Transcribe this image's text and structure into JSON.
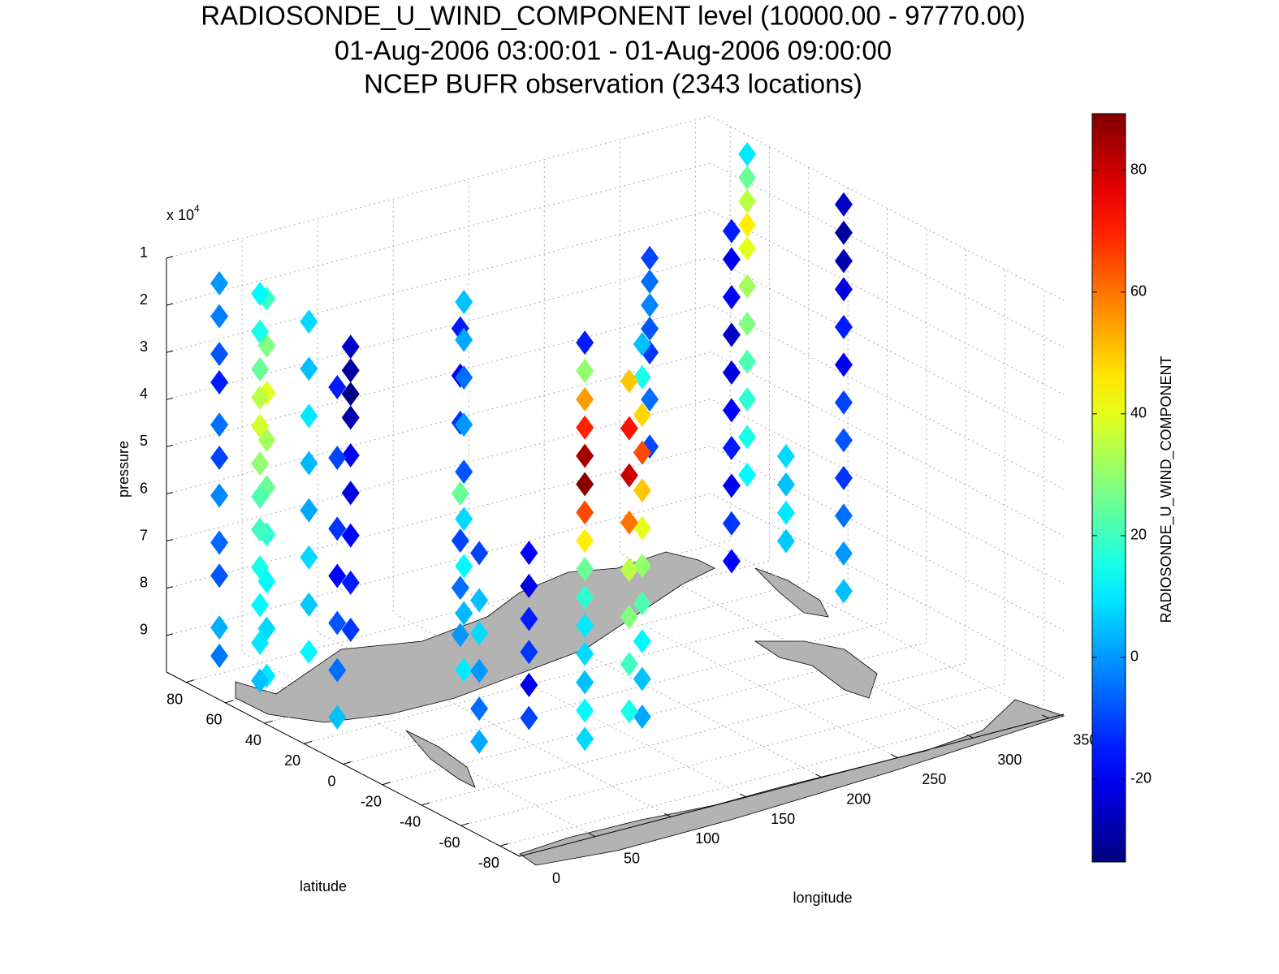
{
  "chart_data": {
    "type": "scatter3d",
    "title": [
      "RADIOSONDE_U_WIND_COMPONENT level (10000.00 - 97770.00)",
      "01-Aug-2006 03:00:01 - 01-Aug-2006 09:00:00",
      "NCEP BUFR observation (2343 locations)"
    ],
    "xlabel": "longitude",
    "ylabel": "latitude",
    "zlabel": "pressure",
    "z_multiplier": "x 10",
    "z_multiplier_exponent": "4",
    "xlim": [
      0,
      360
    ],
    "xticks": [
      0,
      50,
      100,
      150,
      200,
      250,
      300,
      350
    ],
    "ylim": [
      -90,
      90
    ],
    "yticks": [
      -80,
      -60,
      -40,
      -20,
      0,
      20,
      40,
      60,
      80
    ],
    "zlim": [
      10000,
      97770
    ],
    "zdir": "reverse",
    "zticks": [
      {
        "value": 10000,
        "label": "1"
      },
      {
        "value": 20000,
        "label": "2"
      },
      {
        "value": 30000,
        "label": "3"
      },
      {
        "value": 40000,
        "label": "4"
      },
      {
        "value": 50000,
        "label": "5"
      },
      {
        "value": 60000,
        "label": "6"
      },
      {
        "value": 70000,
        "label": "7"
      },
      {
        "value": 80000,
        "label": "8"
      },
      {
        "value": 90000,
        "label": "9"
      }
    ],
    "grid": true,
    "marker": "diamond",
    "colormap": "jet",
    "clim": [
      -33.6,
      89.3
    ],
    "colorbar_label": "RADIOSONDE_U_WIND_COMPONENT",
    "colorbar_ticks": [
      -20,
      0,
      20,
      40,
      60,
      80
    ],
    "stations": [
      {
        "longitude": 344,
        "latitude": 59,
        "pressure": [
          10000,
          15000,
          20000,
          25000,
          30000,
          38000,
          46000,
          54000,
          62000,
          70000,
          78000
        ],
        "values": [
          10,
          25,
          35,
          45,
          40,
          32,
          28,
          22,
          18,
          15,
          12
        ]
      },
      {
        "longitude": 345,
        "latitude": 40,
        "pressure": [
          70000,
          76000,
          82000,
          88000
        ],
        "values": [
          8,
          5,
          10,
          6
        ]
      },
      {
        "longitude": 273,
        "latitude": 54,
        "pressure": [
          25000,
          30000,
          35000,
          40000,
          45000,
          55000,
          65000
        ],
        "values": [
          -10,
          -5,
          -2,
          -8,
          -12,
          -5,
          -10
        ]
      },
      {
        "longitude": 352,
        "latitude": 16,
        "pressure": [
          12000,
          18000,
          24000,
          30000,
          38000,
          46000,
          54000,
          62000,
          70000,
          78000,
          86000,
          94000
        ],
        "values": [
          -25,
          -30,
          -28,
          -22,
          -15,
          -20,
          -10,
          -8,
          -12,
          -5,
          0,
          5
        ]
      },
      {
        "longitude": 296,
        "latitude": 30,
        "pressure": [
          16000,
          22000,
          30000,
          38000,
          46000,
          54000,
          62000,
          70000,
          78000,
          86000
        ],
        "values": [
          -15,
          -20,
          -18,
          -25,
          -22,
          -18,
          -15,
          -20,
          -12,
          -18
        ]
      },
      {
        "longitude": 22,
        "latitude": 80,
        "pressure": [
          15000,
          22000,
          30000,
          36000,
          45000,
          52000,
          60000,
          70000,
          77000,
          88000,
          94000
        ],
        "values": [
          0,
          -3,
          -8,
          -15,
          -5,
          -10,
          -2,
          -6,
          -8,
          3,
          -4
        ]
      },
      {
        "longitude": 30,
        "latitude": 62,
        "pressure": [
          15000,
          25000,
          35000,
          45000,
          55000,
          65000,
          75000,
          85000,
          95000
        ],
        "values": [
          20,
          28,
          40,
          32,
          25,
          18,
          12,
          8,
          10
        ]
      },
      {
        "longitude": 66,
        "latitude": 47,
        "pressure": [
          25000,
          30000,
          35000,
          40000,
          48000,
          56000,
          65000,
          75000,
          85000
        ],
        "values": [
          -25,
          -30,
          -33,
          -28,
          -20,
          -22,
          -18,
          -15,
          -12
        ]
      },
      {
        "longitude": 110,
        "latitude": 25,
        "pressure": [
          20000,
          30000,
          40000,
          55000,
          65000,
          75000,
          85000
        ],
        "values": [
          -15,
          -20,
          -12,
          25,
          -10,
          -5,
          0
        ]
      },
      {
        "longitude": 41,
        "latitude": 49,
        "pressure": [
          18000,
          28000,
          38000,
          48000,
          58000,
          68000,
          78000,
          88000
        ],
        "values": [
          8,
          5,
          10,
          4,
          2,
          8,
          6,
          12
        ]
      },
      {
        "longitude": 19,
        "latitude": 57,
        "pressure": [
          12000,
          20000,
          28000,
          34000,
          40000,
          48000,
          55000,
          62000,
          70000,
          78000,
          86000,
          94000
        ],
        "values": [
          12,
          15,
          25,
          35,
          38,
          30,
          22,
          20,
          15,
          12,
          10,
          5
        ]
      },
      {
        "longitude": 102,
        "latitude": 17,
        "pressure": [
          12000,
          20000,
          28000,
          38000,
          48000,
          58000,
          68000,
          78000,
          90000
        ],
        "values": [
          5,
          2,
          -5,
          0,
          -8,
          8,
          12,
          4,
          10
        ]
      },
      {
        "longitude": 26,
        "latitude": 23,
        "pressure": [
          25000,
          40000,
          55000,
          65000,
          75000,
          85000,
          95000
        ],
        "values": [
          -15,
          -10,
          -12,
          -18,
          -8,
          -5,
          5
        ]
      },
      {
        "longitude": 110,
        "latitude": -10,
        "pressure": [
          60000,
          67000,
          74000,
          81000,
          88000,
          95000
        ],
        "values": [
          -18,
          -22,
          -15,
          -12,
          -20,
          -10
        ]
      },
      {
        "longitude": 157,
        "latitude": -31.5,
        "pressure": [
          15000,
          22000,
          30000,
          38000,
          46000,
          54000,
          62000,
          70000,
          78000,
          86000,
          94000
        ],
        "values": [
          5,
          15,
          48,
          65,
          50,
          40,
          30,
          22,
          12,
          5,
          2
        ]
      },
      {
        "longitude": 121,
        "latitude": -30,
        "pressure": [
          12000,
          18000,
          24000,
          30000,
          36000,
          42000,
          48000,
          54000,
          60000,
          66000,
          72000,
          78000,
          84000,
          90000,
          96000
        ],
        "values": [
          -15,
          30,
          55,
          70,
          85,
          88,
          65,
          45,
          25,
          18,
          10,
          8,
          5,
          12,
          8
        ]
      },
      {
        "longitude": 140,
        "latitude": -38,
        "pressure": [
          20000,
          30000,
          40000,
          50000,
          60000,
          70000,
          80000,
          90000
        ],
        "values": [
          50,
          72,
          80,
          60,
          35,
          28,
          20,
          15
        ]
      },
      {
        "longitude": 68,
        "latitude": -17,
        "pressure": [
          55000,
          65000,
          72000,
          80000,
          88000,
          95000
        ],
        "values": [
          -10,
          5,
          8,
          0,
          -5,
          2
        ]
      }
    ]
  }
}
